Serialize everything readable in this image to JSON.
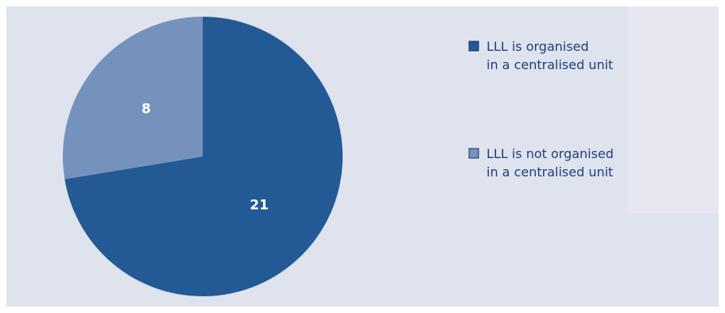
{
  "chart_data": {
    "type": "pie",
    "title": "",
    "slices": [
      {
        "label_lines": [
          "LLL is organised",
          "in a centralised unit"
        ],
        "value": 21,
        "value_label": "21",
        "color": "#235a95"
      },
      {
        "label_lines": [
          "LLL is not organised",
          "in a centralised unit"
        ],
        "value": 8,
        "value_label": "8",
        "color": "#7592bd"
      }
    ],
    "start_angle_deg": 0,
    "direction": "clockwise",
    "legend_position": "right",
    "background_color": "#dfe3ee",
    "legend_text_color": "#1f3f7a"
  }
}
